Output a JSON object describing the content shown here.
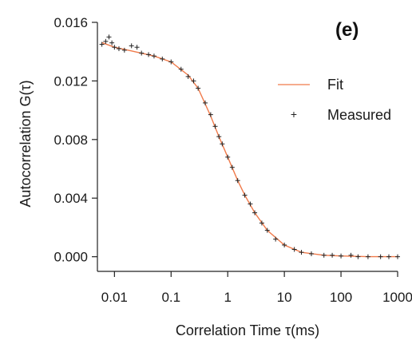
{
  "chart_data": {
    "type": "scatter",
    "panel_label": "(e)",
    "xlabel": "Correlation Time τ(ms)",
    "ylabel": "Autocorrelation G(τ)",
    "x_scale": "log",
    "xlim": [
      0.005,
      1000
    ],
    "ylim": [
      -0.001,
      0.016
    ],
    "x_ticks": [
      0.01,
      0.1,
      1,
      10,
      100,
      1000
    ],
    "x_tick_labels": [
      "0.01",
      "0.1",
      "1",
      "10",
      "100",
      "1000"
    ],
    "y_ticks": [
      0.0,
      0.004,
      0.008,
      0.012,
      0.016
    ],
    "y_tick_labels": [
      "0.000",
      "0.004",
      "0.008",
      "0.012",
      "0.016"
    ],
    "grid": false,
    "legend_position": "right",
    "series": [
      {
        "name": "Fit",
        "kind": "line",
        "color": "#f07a4a",
        "x": [
          0.006,
          0.01,
          0.02,
          0.05,
          0.1,
          0.2,
          0.3,
          0.5,
          0.7,
          1,
          1.5,
          2,
          3,
          5,
          10,
          20,
          50,
          100,
          300,
          1000
        ],
        "y": [
          0.01462,
          0.0143,
          0.01405,
          0.0137,
          0.0133,
          0.0124,
          0.0115,
          0.0096,
          0.0082,
          0.0068,
          0.0052,
          0.0042,
          0.003,
          0.0018,
          0.0008,
          0.0003,
          0.0001,
          5e-05,
          0.0,
          0.0
        ]
      },
      {
        "name": "Measured",
        "kind": "scatter",
        "marker": "+",
        "color": "#222222",
        "x": [
          0.006,
          0.007,
          0.008,
          0.009,
          0.01,
          0.012,
          0.015,
          0.02,
          0.025,
          0.03,
          0.04,
          0.05,
          0.07,
          0.1,
          0.15,
          0.2,
          0.25,
          0.3,
          0.4,
          0.5,
          0.6,
          0.7,
          0.8,
          1,
          1.2,
          1.5,
          2,
          2.5,
          3,
          4,
          5,
          7,
          10,
          15,
          20,
          30,
          50,
          70,
          100,
          150,
          200,
          300,
          500,
          700,
          1000
        ],
        "y": [
          0.0145,
          0.0147,
          0.015,
          0.0146,
          0.0143,
          0.0142,
          0.0141,
          0.0144,
          0.0143,
          0.0139,
          0.0138,
          0.0137,
          0.0135,
          0.0133,
          0.0128,
          0.0123,
          0.012,
          0.0115,
          0.0105,
          0.0097,
          0.0089,
          0.0082,
          0.0077,
          0.0068,
          0.0061,
          0.0052,
          0.0042,
          0.0036,
          0.003,
          0.0023,
          0.0018,
          0.0012,
          0.0008,
          0.0005,
          0.0003,
          0.0002,
          0.0001,
          0.0001,
          5e-05,
          0.0001,
          0.0,
          0.0,
          0.0,
          0.0,
          0.0
        ]
      }
    ]
  }
}
